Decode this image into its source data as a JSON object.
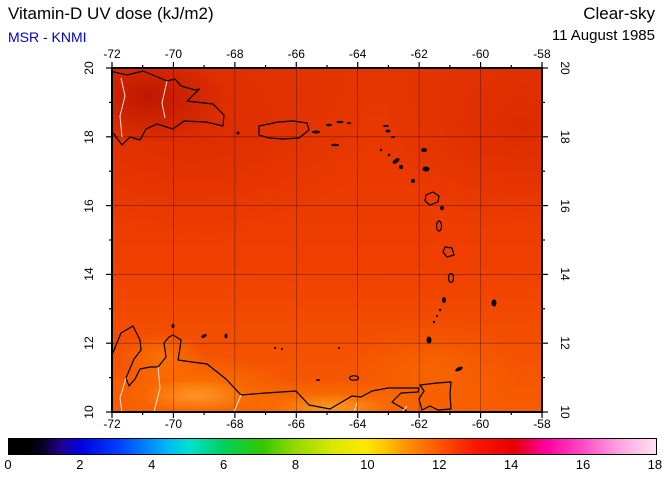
{
  "header": {
    "title": "Vitamin-D UV dose (kJ/m2)",
    "source": "MSR - KNMI",
    "condition": "Clear-sky",
    "date": "11 August 1985"
  },
  "axes": {
    "lon_labels": [
      "-72",
      "-70",
      "-68",
      "-66",
      "-64",
      "-62",
      "-60",
      "-58"
    ],
    "lat_labels": [
      "20",
      "18",
      "16",
      "14",
      "12",
      "10"
    ]
  },
  "colorbar": {
    "labels": [
      "0",
      "2",
      "4",
      "6",
      "8",
      "10",
      "12",
      "14",
      "16",
      "18"
    ],
    "min": 0,
    "max": 18,
    "units": "kJ/m2"
  },
  "chart_data": {
    "type": "heatmap",
    "title": "Vitamin-D UV dose (kJ/m2)",
    "subtitle": "Clear-sky, 11 August 1985",
    "source": "MSR - KNMI",
    "region": {
      "lon_range": [
        -72,
        -58
      ],
      "lat_range": [
        10,
        20
      ],
      "area": "Caribbean: Hispaniola, Puerto Rico, Lesser Antilles, Trinidad, Venezuelan coast"
    },
    "grid_interval_deg": 2,
    "colorbar": {
      "min": 0,
      "max": 18,
      "tick_labels": [
        0,
        2,
        4,
        6,
        8,
        10,
        12,
        14,
        16,
        18
      ],
      "palette_order": [
        "black",
        "dark blue",
        "blue",
        "cyan",
        "green",
        "yellow-green",
        "yellow",
        "orange",
        "red",
        "magenta",
        "pink-white"
      ]
    },
    "field_summary": "Mostly uniform red-orange field ~12-13 kJ/m2; darkest red (~13-14) over northwest corner near Hispaniola; brighter orange (~11-12) along the southern edge (10-12N) near the Venezuelan coast"
  }
}
